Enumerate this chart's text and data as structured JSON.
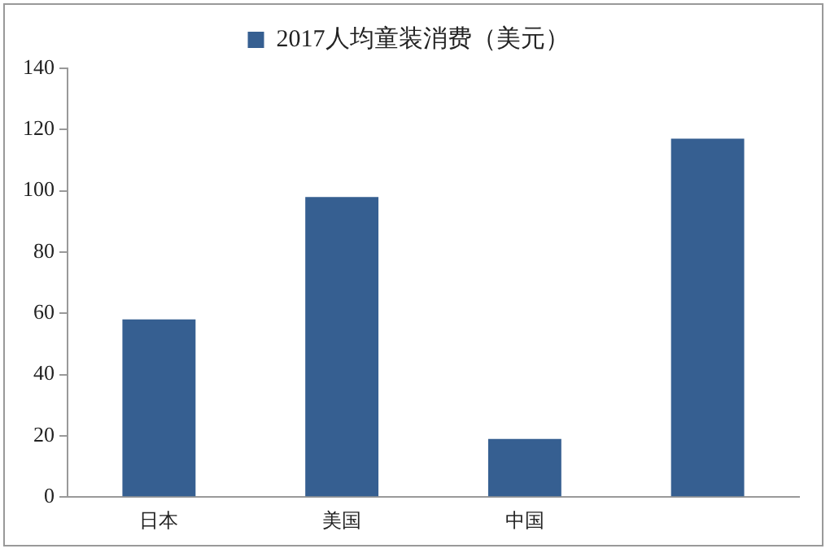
{
  "chart_data": {
    "type": "bar",
    "categories": [
      "日本",
      "美国",
      "中国",
      null
    ],
    "series": [
      {
        "name": "2017人均童装消费（美元）",
        "color": "#365f91",
        "values": [
          58,
          98,
          19,
          117
        ]
      }
    ],
    "ylim": [
      0,
      140
    ],
    "yticks": [
      0,
      20,
      40,
      60,
      80,
      100,
      120,
      140
    ],
    "grid": false,
    "legend": "top"
  }
}
